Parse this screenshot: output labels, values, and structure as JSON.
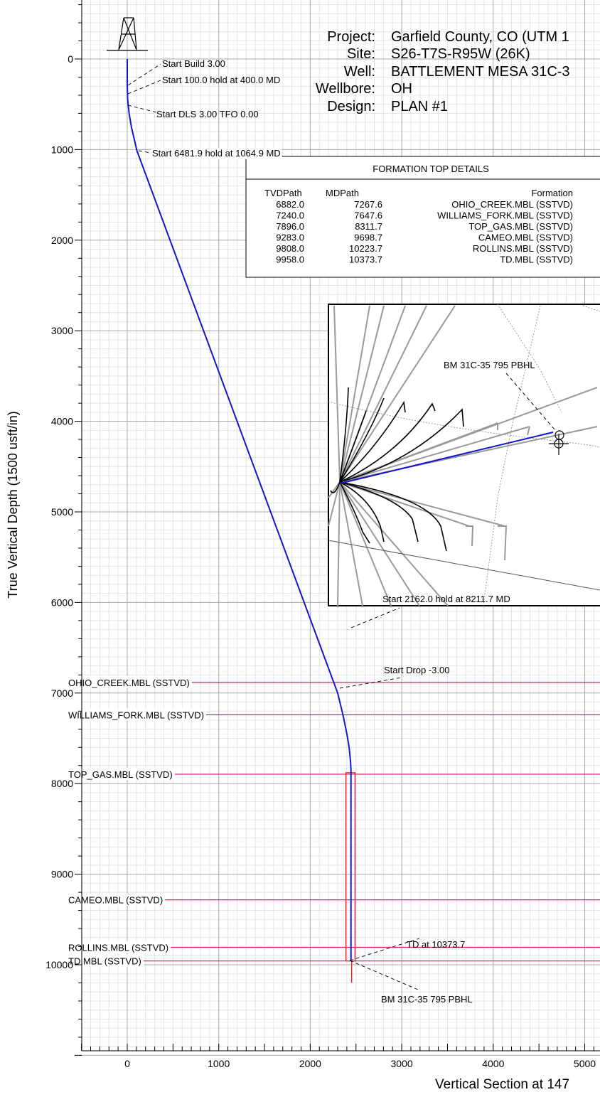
{
  "chart_data": {
    "type": "line",
    "xlabel": "Vertical Section at 147",
    "ylabel": "True Vertical Depth (1500 usft/in)",
    "xlim": [
      -500,
      5200
    ],
    "ylim": [
      11000,
      -550
    ],
    "y_inverted": true,
    "x_ticks": [
      0,
      1000,
      2000,
      3000,
      4000,
      5000
    ],
    "y_ticks": [
      0,
      1000,
      2000,
      3000,
      4000,
      5000,
      6000,
      7000,
      8000,
      9000,
      10000
    ],
    "grid": true,
    "info": {
      "project_label": "Project:",
      "project_value": "Garfield County, CO (UTM 1",
      "site_label": "Site:",
      "site_value": "S26-T7S-R95W (26K)",
      "well_label": "Well:",
      "well_value": "BATTLEMENT MESA 31C-3",
      "wellbore_label": "Wellbore:",
      "wellbore_value": "OH",
      "design_label": "Design:",
      "design_value": "PLAN  #1"
    },
    "formation_table": {
      "title": "FORMATION TOP DETAILS",
      "headers": [
        "TVDPath",
        "MDPath",
        "Formation"
      ],
      "rows": [
        [
          "6882.0",
          "7267.6",
          "OHIO_CREEK.MBL (SSTVD)"
        ],
        [
          "7240.0",
          "7647.6",
          "WILLIAMS_FORK.MBL (SSTVD)"
        ],
        [
          "7896.0",
          "8311.7",
          "TOP_GAS.MBL (SSTVD)"
        ],
        [
          "9283.0",
          "9698.7",
          "CAMEO.MBL (SSTVD)"
        ],
        [
          "9808.0",
          "10223.7",
          "ROLLINS.MBL (SSTVD)"
        ],
        [
          "9958.0",
          "10373.7",
          "TD.MBL (SSTVD)"
        ]
      ]
    },
    "formations": [
      {
        "name": "OHIO_CREEK.MBL (SSTVD)",
        "tvd": 6882
      },
      {
        "name": "WILLIAMS_FORK.MBL (SSTVD)",
        "tvd": 7240
      },
      {
        "name": "TOP_GAS.MBL (SSTVD)",
        "tvd": 7896
      },
      {
        "name": "CAMEO.MBL (SSTVD)",
        "tvd": 9283
      },
      {
        "name": "ROLLINS.MBL (SSTVD)",
        "tvd": 9808
      },
      {
        "name": "TD.MBL (SSTVD)",
        "tvd": 9958
      }
    ],
    "series": [
      {
        "x": [
          0,
          0,
          5,
          20,
          45,
          80,
          105,
          2300,
          2360,
          2400,
          2425,
          2440,
          2445,
          2445
        ],
        "y": [
          0,
          300,
          450,
          600,
          750,
          900,
          1010,
          7000,
          7250,
          7450,
          7600,
          7750,
          7850,
          9958
        ],
        "color": "#1515cc"
      }
    ],
    "target_box": {
      "x1": 2390,
      "x2": 2490,
      "y1": 7880,
      "y2": 9958,
      "color": "#dd2222"
    },
    "annotations": [
      "Start Build 3.00",
      "Start 100.0 hold at 400.0 MD",
      "Start DLS 3.00 TFO 0.00",
      "Start 6481.9 hold at 1064.9 MD",
      "Start Drop -3.00",
      "Start 2162.0 hold at 8211.7 MD",
      "TD at 10373.7",
      "BM 31C-35 795 PBHL"
    ],
    "inset": {
      "label": "BM 31C-35 795 PBHL"
    }
  }
}
